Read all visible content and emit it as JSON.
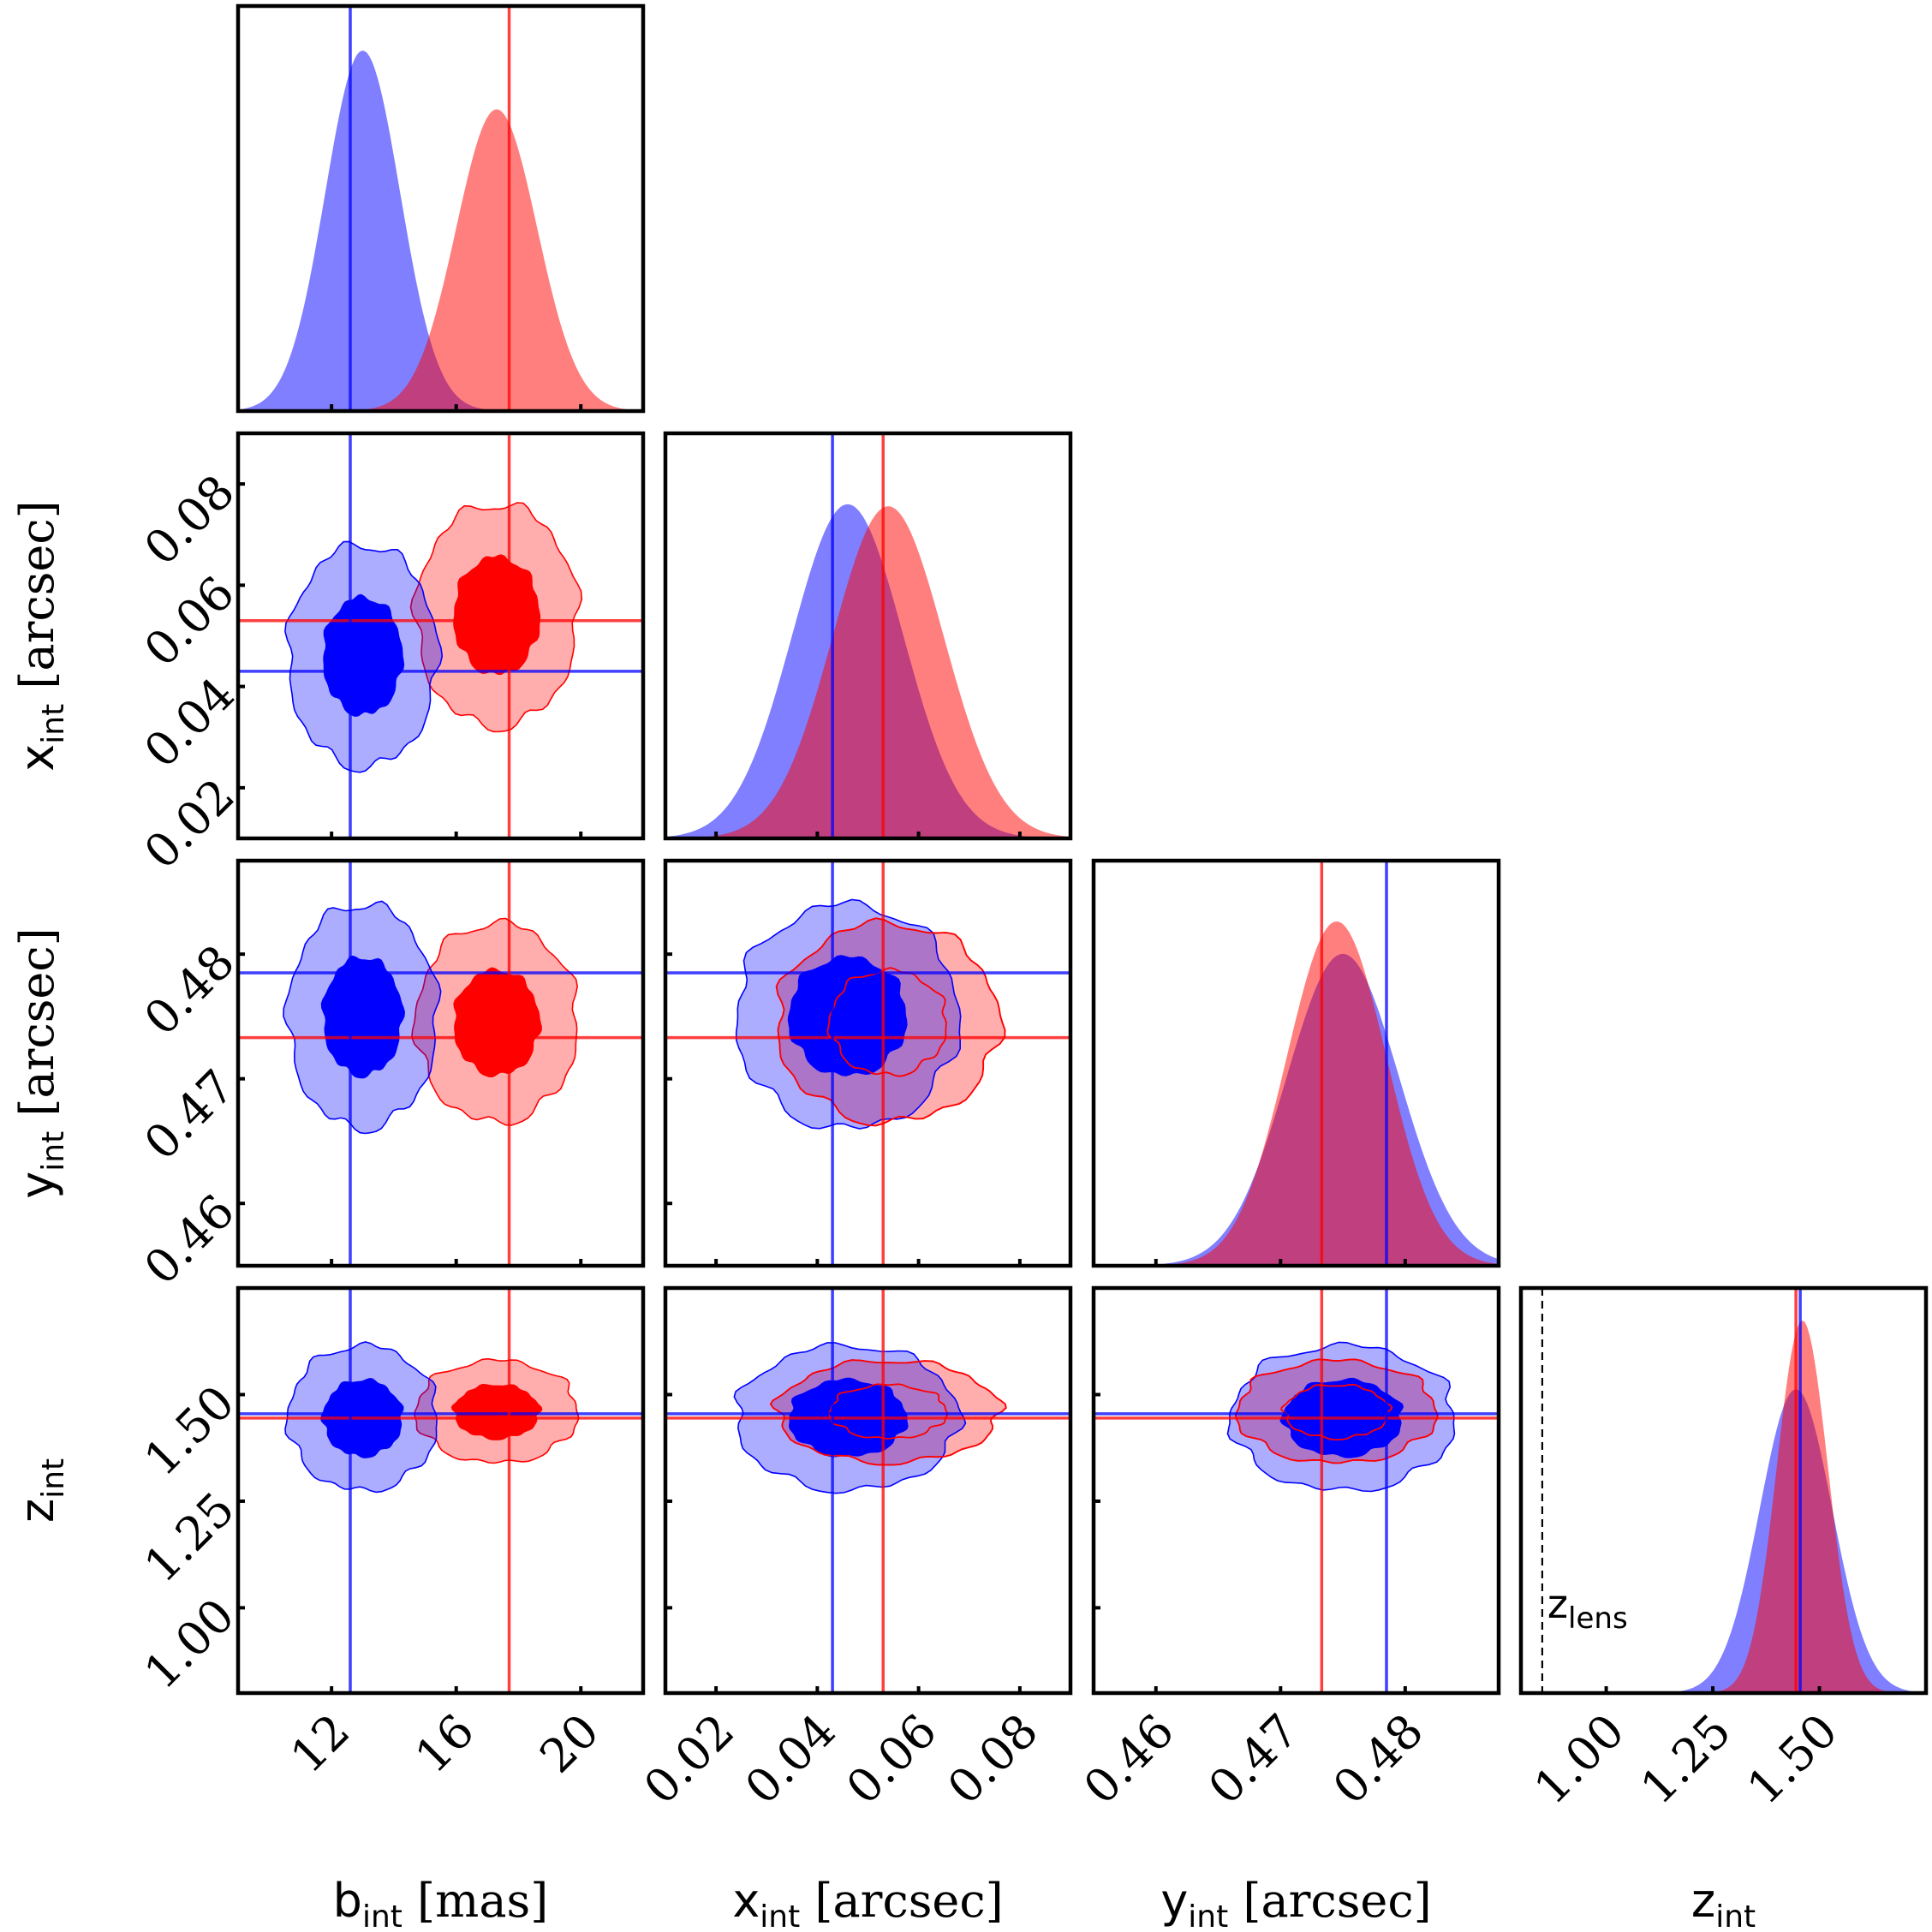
{
  "chart_data": {
    "type": "corner",
    "colors": {
      "blue": "#0000ff",
      "red": "#ff0000"
    },
    "params": [
      {
        "key": "b",
        "sym": "b",
        "sub": "int",
        "unit": " [mas]",
        "range": [
          9,
          22
        ],
        "ticks": [
          12,
          16,
          20
        ],
        "tick_labels": [
          "12",
          "16",
          "20"
        ],
        "truth_blue": 12.6,
        "truth_red": 17.7
      },
      {
        "key": "x",
        "sym": "x",
        "sub": "int",
        "unit": " [arcsec]",
        "range": [
          0.01,
          0.09
        ],
        "ticks": [
          0.02,
          0.04,
          0.06,
          0.08
        ],
        "tick_labels": [
          "0.02",
          "0.04",
          "0.06",
          "0.08"
        ],
        "truth_blue": 0.043,
        "truth_red": 0.053
      },
      {
        "key": "y",
        "sym": "y",
        "sub": "int",
        "unit": " [arcsec]",
        "range": [
          0.455,
          0.4875
        ],
        "ticks": [
          0.46,
          0.47,
          0.48
        ],
        "tick_labels": [
          "0.46",
          "0.47",
          "0.48"
        ],
        "truth_blue": 0.4785,
        "truth_red": 0.4733
      },
      {
        "key": "z",
        "sym": "z",
        "sub": "int",
        "unit": "",
        "range": [
          0.8,
          1.75
        ],
        "ticks": [
          1.0,
          1.25,
          1.5
        ],
        "tick_labels": [
          "1.00",
          "1.25",
          "1.50"
        ],
        "truth_blue": 1.455,
        "truth_red": 1.445
      }
    ],
    "blue": {
      "mean": [
        13.0,
        0.046,
        0.475,
        1.445
      ],
      "std": [
        1.2,
        0.011,
        0.0045,
        0.085
      ]
    },
    "red": {
      "mean": [
        17.3,
        0.054,
        0.4745,
        1.46
      ],
      "std": [
        1.3,
        0.011,
        0.004,
        0.06
      ]
    },
    "z_lens": {
      "value": 0.85,
      "label_sym": "z",
      "label_sub": "lens"
    }
  }
}
